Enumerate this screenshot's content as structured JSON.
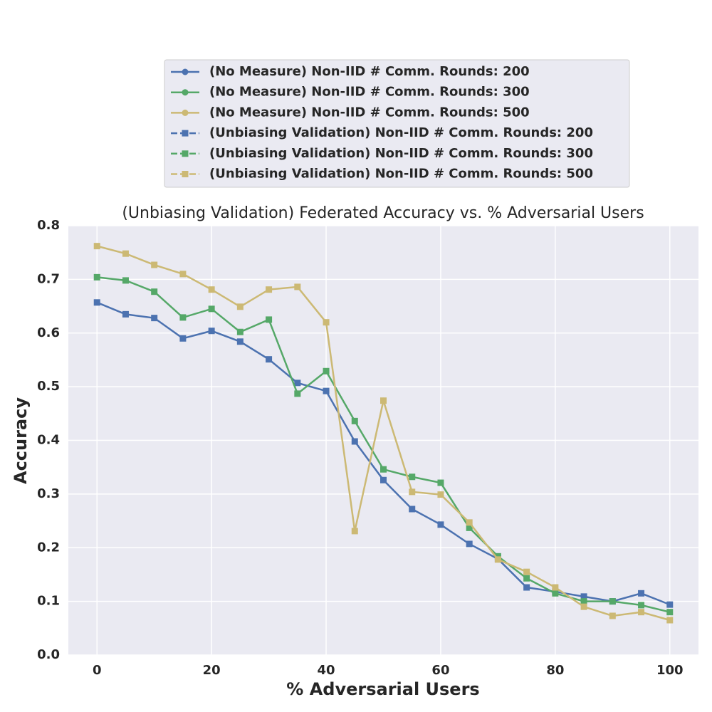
{
  "chart_data": {
    "type": "line",
    "title": "(Unbiasing Validation) Federated Accuracy vs. % Adversarial Users",
    "xlabel": "% Adversarial Users",
    "ylabel": "Accuracy",
    "x": [
      0,
      5,
      10,
      15,
      20,
      25,
      30,
      35,
      40,
      45,
      50,
      55,
      60,
      65,
      70,
      75,
      80,
      85,
      90,
      95,
      100
    ],
    "xlim": [
      -5,
      105
    ],
    "xticks": [
      0,
      20,
      40,
      60,
      80,
      100
    ],
    "ylim": [
      0,
      0.8
    ],
    "yticks": [
      {
        "value": 0,
        "label": "0.0"
      },
      0.1,
      0.2,
      0.3,
      0.4,
      0.5,
      0.6,
      0.7,
      0.8
    ],
    "grid": true,
    "legend": "upper center",
    "series": [
      {
        "name": "(No Measure) Non-IID # Comm. Rounds: 200",
        "color": "#4c72b0",
        "marker": "circle",
        "dashed": false
      },
      {
        "name": "(No Measure) Non-IID # Comm. Rounds: 300",
        "color": "#55a868",
        "marker": "circle",
        "dashed": false
      },
      {
        "name": "(No Measure) Non-IID # Comm. Rounds: 500",
        "color": "#ccb974",
        "marker": "circle",
        "dashed": false
      },
      {
        "name": "(Unbiasing Validation) Non-IID # Comm. Rounds: 200",
        "color": "#4c72b0",
        "marker": "square",
        "dashed": true,
        "values": [
          0.657,
          0.635,
          0.628,
          0.59,
          0.604,
          0.584,
          0.551,
          0.507,
          0.492,
          0.398,
          0.326,
          0.272,
          0.243,
          0.207,
          0.179,
          0.126,
          0.118,
          0.109,
          0.1,
          0.115,
          0.094
        ]
      },
      {
        "name": "(Unbiasing Validation) Non-IID # Comm. Rounds: 300",
        "color": "#55a868",
        "marker": "square",
        "dashed": true,
        "values": [
          0.704,
          0.698,
          0.677,
          0.629,
          0.645,
          0.602,
          0.625,
          0.487,
          0.529,
          0.436,
          0.346,
          0.332,
          0.321,
          0.237,
          0.184,
          0.143,
          0.115,
          0.1,
          0.1,
          0.093,
          0.08
        ]
      },
      {
        "name": "(Unbiasing Validation) Non-IID # Comm. Rounds: 500",
        "color": "#ccb974",
        "marker": "square",
        "dashed": true,
        "values": [
          0.762,
          0.748,
          0.727,
          0.71,
          0.681,
          0.649,
          0.681,
          0.686,
          0.62,
          0.231,
          0.474,
          0.304,
          0.299,
          0.247,
          0.178,
          0.155,
          0.126,
          0.09,
          0.073,
          0.08,
          0.065
        ]
      }
    ]
  }
}
